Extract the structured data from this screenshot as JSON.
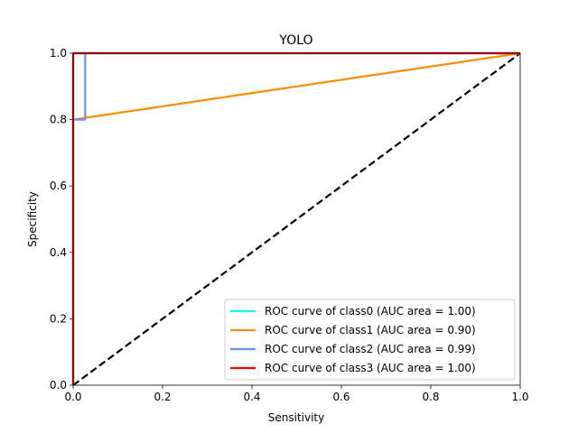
{
  "chart_data": {
    "type": "line",
    "title": "YOLO",
    "xlabel": "Sensitivity",
    "ylabel": "Specificity",
    "xlim": [
      0.0,
      1.0
    ],
    "ylim": [
      0.0,
      1.0
    ],
    "xticks": [
      "0.0",
      "0.2",
      "0.4",
      "0.6",
      "0.8",
      "1.0"
    ],
    "yticks": [
      "0.0",
      "0.2",
      "0.4",
      "0.6",
      "0.8",
      "1.0"
    ],
    "grid": false,
    "legend_position": "lower-right",
    "series": [
      {
        "name": "ROC curve of class0 (AUC area = 1.00)",
        "color": "#00ffff",
        "x": [
          0.0,
          0.0,
          1.0
        ],
        "y": [
          0.0,
          1.0,
          1.0
        ]
      },
      {
        "name": "ROC curve of class1 (AUC area = 0.90)",
        "color": "#ff8c00",
        "x": [
          0.0,
          0.0,
          1.0
        ],
        "y": [
          0.0,
          0.8,
          1.0
        ]
      },
      {
        "name": "ROC curve of class2 (AUC area = 0.99)",
        "color": "#6495ed",
        "x": [
          0.0,
          0.0,
          0.027,
          0.027,
          1.0
        ],
        "y": [
          0.0,
          0.8,
          0.8,
          1.0,
          1.0
        ]
      },
      {
        "name": "ROC curve of class3 (AUC area = 1.00)",
        "color": "#ff0000",
        "x": [
          0.0,
          0.0,
          1.0
        ],
        "y": [
          0.0,
          1.0,
          1.0
        ]
      }
    ],
    "reference_line": {
      "x": [
        0.0,
        1.0
      ],
      "y": [
        0.0,
        1.0
      ],
      "color": "#000000",
      "style": "dashed"
    }
  }
}
